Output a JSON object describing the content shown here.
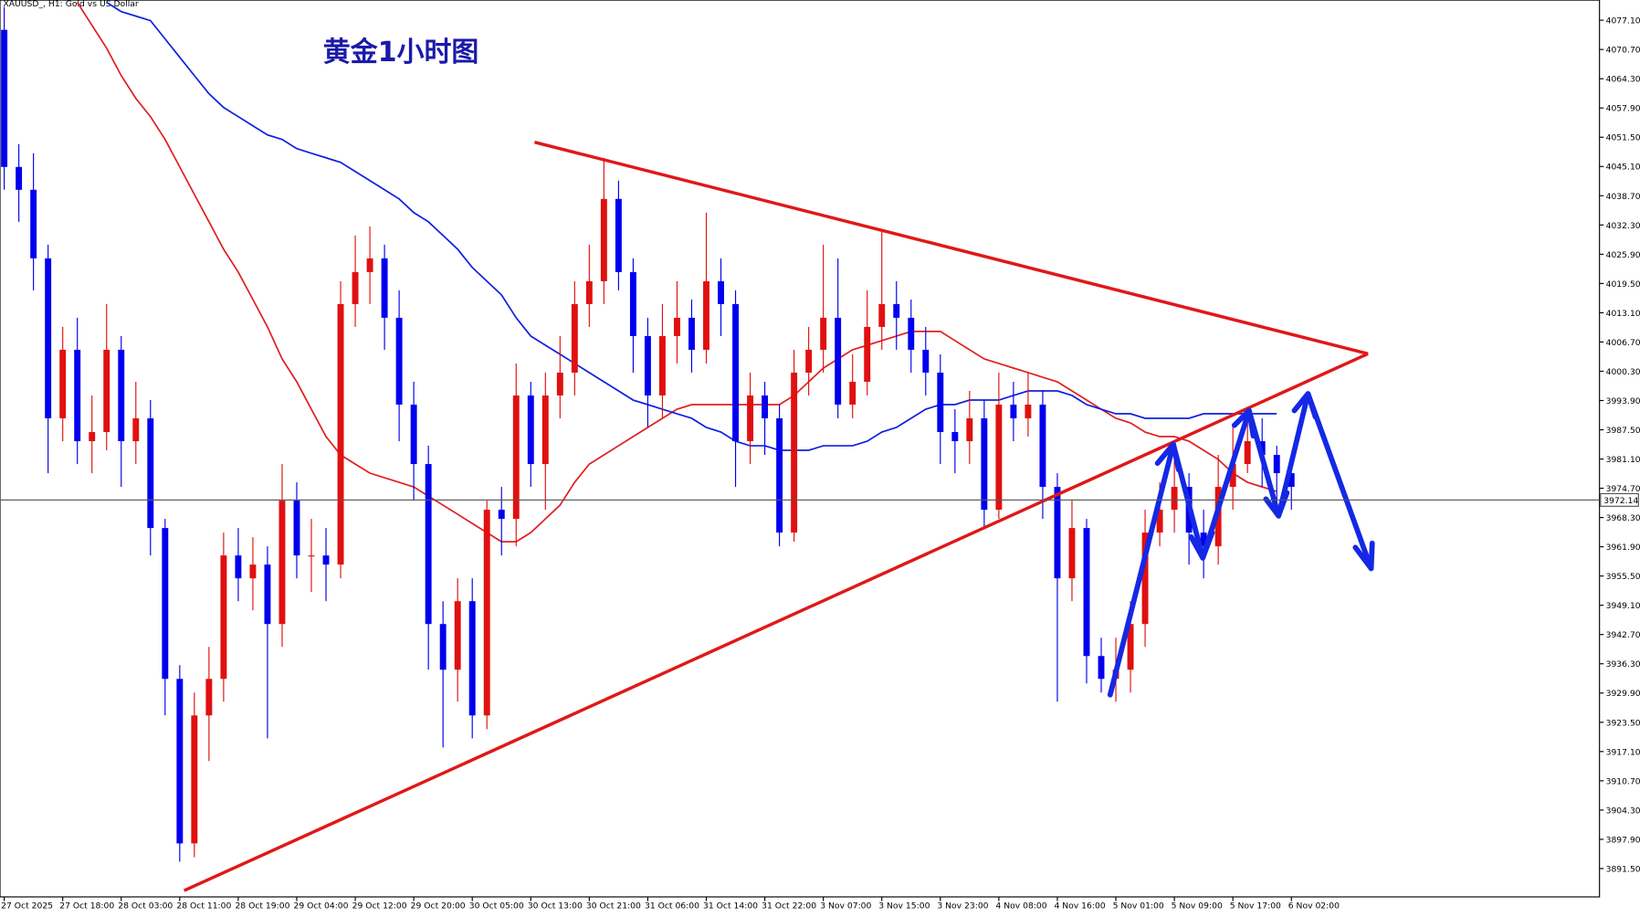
{
  "chart_data": {
    "type": "candlestick",
    "symbol_label": "XAUUSD_, H1:  Gold vs US Dollar",
    "title": "黄金1小时图",
    "categories": [
      "27 Oct 2025",
      null,
      null,
      null,
      "27 Oct 18:00",
      null,
      null,
      null,
      "28 Oct 03:00",
      null,
      null,
      null,
      "28 Oct 11:00",
      null,
      null,
      null,
      "28 Oct 19:00",
      null,
      null,
      null,
      "29 Oct 04:00",
      null,
      null,
      null,
      "29 Oct 12:00",
      null,
      null,
      null,
      "29 Oct 20:00",
      null,
      null,
      null,
      "30 Oct 05:00",
      null,
      null,
      null,
      "30 Oct 13:00",
      null,
      null,
      null,
      "30 Oct 21:00",
      null,
      null,
      null,
      "31 Oct 06:00",
      null,
      null,
      null,
      "31 Oct 14:00",
      null,
      null,
      null,
      "31 Oct 22:00",
      null,
      null,
      null,
      "3 Nov 07:00",
      null,
      null,
      null,
      "3 Nov 15:00",
      null,
      null,
      null,
      "3 Nov 23:00",
      null,
      null,
      null,
      "4 Nov 08:00",
      null,
      null,
      null,
      "4 Nov 16:00",
      null,
      null,
      null,
      "5 Nov 01:00",
      null,
      null,
      null,
      "5 Nov 09:00",
      null,
      null,
      null,
      "5 Nov 17:00",
      null,
      null,
      null,
      "6 Nov 02:00"
    ],
    "open": [
      4075,
      4045,
      4040,
      4025,
      3990,
      4005,
      3985,
      3987,
      4005,
      3985,
      3990,
      3966,
      3933,
      3897,
      3925,
      3933,
      3960,
      3955,
      3958,
      3945,
      3972,
      3960,
      3960,
      3958,
      4015,
      4022,
      4025,
      4012,
      3993,
      3980,
      3945,
      3935,
      3950,
      3925,
      3970,
      3968,
      3995,
      3980,
      3995,
      4000,
      4015,
      4020,
      4038,
      4022,
      4008,
      3995,
      4008,
      4012,
      4005,
      4020,
      4015,
      3985,
      3995,
      3990,
      3965,
      4000,
      4005,
      4012,
      3993,
      3998,
      4010,
      4015,
      4012,
      4005,
      4000,
      3987,
      3985,
      3990,
      3970,
      3993,
      3990,
      3993,
      3975,
      3955,
      3966,
      3938,
      3933,
      3935,
      3945,
      3965,
      3970,
      3975,
      3965,
      3962,
      3975,
      3980,
      3985,
      3982,
      3978
    ],
    "high": [
      4080,
      4050,
      4048,
      4028,
      4010,
      4012,
      3995,
      4015,
      4008,
      3998,
      3994,
      3968,
      3936,
      3930,
      3940,
      3965,
      3966,
      3964,
      3962,
      3980,
      3976,
      3968,
      3966,
      4020,
      4030,
      4032,
      4028,
      4018,
      3998,
      3984,
      3950,
      3955,
      3955,
      3972,
      3975,
      4002,
      3998,
      4000,
      4008,
      4020,
      4028,
      4047,
      4042,
      4025,
      4012,
      4015,
      4020,
      4016,
      4035,
      4025,
      4018,
      4000,
      3998,
      3993,
      4005,
      4010,
      4028,
      4025,
      4004,
      4018,
      4031,
      4020,
      4016,
      4010,
      4004,
      3992,
      3996,
      3994,
      4000,
      3998,
      4000,
      3996,
      3978,
      3972,
      3968,
      3942,
      3942,
      3950,
      3970,
      3976,
      3985,
      3978,
      3970,
      3982,
      3988,
      3992,
      3990,
      3984,
      3982
    ],
    "low": [
      4040,
      4033,
      4018,
      3978,
      3985,
      3980,
      3978,
      3983,
      3975,
      3980,
      3960,
      3925,
      3893,
      3894,
      3915,
      3928,
      3950,
      3948,
      3920,
      3940,
      3955,
      3952,
      3950,
      3955,
      4010,
      4015,
      4005,
      3985,
      3972,
      3935,
      3918,
      3928,
      3920,
      3922,
      3960,
      3962,
      3975,
      3970,
      3990,
      3995,
      4010,
      4015,
      4018,
      4000,
      3988,
      3990,
      4002,
      4000,
      4002,
      4008,
      3975,
      3980,
      3982,
      3962,
      3963,
      3995,
      4000,
      3990,
      3990,
      3995,
      4005,
      4005,
      4000,
      3995,
      3980,
      3978,
      3980,
      3966,
      3968,
      3985,
      3986,
      3968,
      3928,
      3950,
      3932,
      3930,
      3928,
      3930,
      3940,
      3962,
      3965,
      3958,
      3955,
      3958,
      3970,
      3978,
      3975,
      3970,
      3970
    ],
    "close": [
      4045,
      4040,
      4025,
      3990,
      4005,
      3985,
      3987,
      4005,
      3985,
      3990,
      3966,
      3933,
      3897,
      3925,
      3933,
      3960,
      3955,
      3958,
      3945,
      3972,
      3960,
      3960,
      3958,
      4015,
      4022,
      4025,
      4012,
      3993,
      3980,
      3945,
      3935,
      3950,
      3925,
      3970,
      3968,
      3995,
      3980,
      3995,
      4000,
      4015,
      4020,
      4038,
      4022,
      4008,
      3995,
      4008,
      4012,
      4005,
      4020,
      4015,
      3985,
      3995,
      3990,
      3965,
      4000,
      4005,
      4012,
      3993,
      3998,
      4010,
      4015,
      4012,
      4005,
      4000,
      3987,
      3985,
      3990,
      3970,
      3993,
      3990,
      3993,
      3975,
      3955,
      3966,
      3938,
      3933,
      3935,
      3945,
      3965,
      3970,
      3975,
      3965,
      3962,
      3975,
      3980,
      3985,
      3982,
      3978,
      3975
    ],
    "up_color": "#e01010",
    "down_color": "#0000ee",
    "lines": [
      {
        "color": "#e02020",
        "values": [
          null,
          null,
          null,
          null,
          null,
          4081,
          4076,
          4071,
          4065,
          4060,
          4056,
          4051,
          4045,
          4039,
          4033,
          4027,
          4022,
          4016,
          4010,
          4003,
          3998,
          3992,
          3986,
          3982,
          3980,
          3978,
          3977,
          3976,
          3975,
          3973,
          3971,
          3969,
          3967,
          3965,
          3963,
          3963,
          3965,
          3968,
          3971,
          3976,
          3980,
          3982,
          3984,
          3986,
          3988,
          3990,
          3992,
          3993,
          3993,
          3993,
          3993,
          3993,
          3993,
          3993,
          3995,
          3998,
          4001,
          4003,
          4005,
          4006,
          4007,
          4008,
          4009,
          4009,
          4009,
          4007,
          4005,
          4003,
          4002,
          4001,
          4000,
          3999,
          3998,
          3996,
          3994,
          3992,
          3990,
          3989,
          3987,
          3986,
          3986,
          3985,
          3983,
          3981,
          3978,
          3976,
          3975,
          3974,
          null
        ]
      },
      {
        "color": "#1020e0",
        "values": [
          null,
          null,
          null,
          null,
          null,
          null,
          null,
          4081,
          4079,
          4078,
          4077,
          4073,
          4069,
          4065,
          4061,
          4058,
          4056,
          4054,
          4052,
          4051,
          4049,
          4048,
          4047,
          4046,
          4044,
          4042,
          4040,
          4038,
          4035,
          4033,
          4030,
          4027,
          4023,
          4020,
          4017,
          4012,
          4008,
          4006,
          4004,
          4002,
          4000,
          3998,
          3996,
          3994,
          3993,
          3992,
          3991,
          3990,
          3988,
          3987,
          3985,
          3984,
          3984,
          3983,
          3983,
          3983,
          3984,
          3984,
          3984,
          3985,
          3987,
          3988,
          3990,
          3992,
          3993,
          3993,
          3994,
          3994,
          3994,
          3995,
          3996,
          3996,
          3996,
          3995,
          3993,
          3992,
          3991,
          3991,
          3990,
          3990,
          3990,
          3990,
          3991,
          3991,
          3991,
          3991,
          3991,
          3991,
          null
        ]
      }
    ],
    "last_price": 3972.14,
    "ylim": [
      3885.3,
      4081.5
    ],
    "yticks": [
      {
        "value": 4077.1,
        "label": "4077.10"
      },
      {
        "value": 4070.7,
        "label": "4070.70"
      },
      {
        "value": 4064.3,
        "label": "4064.30"
      },
      {
        "value": 4057.9,
        "label": "4057.90"
      },
      {
        "value": 4051.5,
        "label": "4051.50"
      },
      {
        "value": 4045.1,
        "label": "4045.10"
      },
      {
        "value": 4038.7,
        "label": "4038.70"
      },
      {
        "value": 4032.3,
        "label": "4032.30"
      },
      {
        "value": 4025.9,
        "label": "4025.90"
      },
      {
        "value": 4019.5,
        "label": "4019.50"
      },
      {
        "value": 4013.1,
        "label": "4013.10"
      },
      {
        "value": 4006.7,
        "label": "4006.70"
      },
      {
        "value": 4000.3,
        "label": "4000.30"
      },
      {
        "value": 3993.9,
        "label": "3993.90"
      },
      {
        "value": 3987.5,
        "label": "3987.50"
      },
      {
        "value": 3981.1,
        "label": "3981.10"
      },
      {
        "value": 3974.7,
        "label": "3974.70"
      },
      {
        "value": 3968.3,
        "label": "3968.30"
      },
      {
        "value": 3961.9,
        "label": "3961.90"
      },
      {
        "value": 3955.5,
        "label": "3955.50"
      },
      {
        "value": 3949.1,
        "label": "3949.10"
      },
      {
        "value": 3942.7,
        "label": "3942.70"
      },
      {
        "value": 3936.3,
        "label": "3936.30"
      },
      {
        "value": 3929.9,
        "label": "3929.90"
      },
      {
        "value": 3923.5,
        "label": "3923.50"
      },
      {
        "value": 3917.1,
        "label": "3917.10"
      },
      {
        "value": 3910.7,
        "label": "3910.70"
      },
      {
        "value": 3904.3,
        "label": "3904.30"
      },
      {
        "value": 3897.9,
        "label": "3897.90"
      },
      {
        "value": 3891.5,
        "label": "3891.50"
      }
    ]
  }
}
